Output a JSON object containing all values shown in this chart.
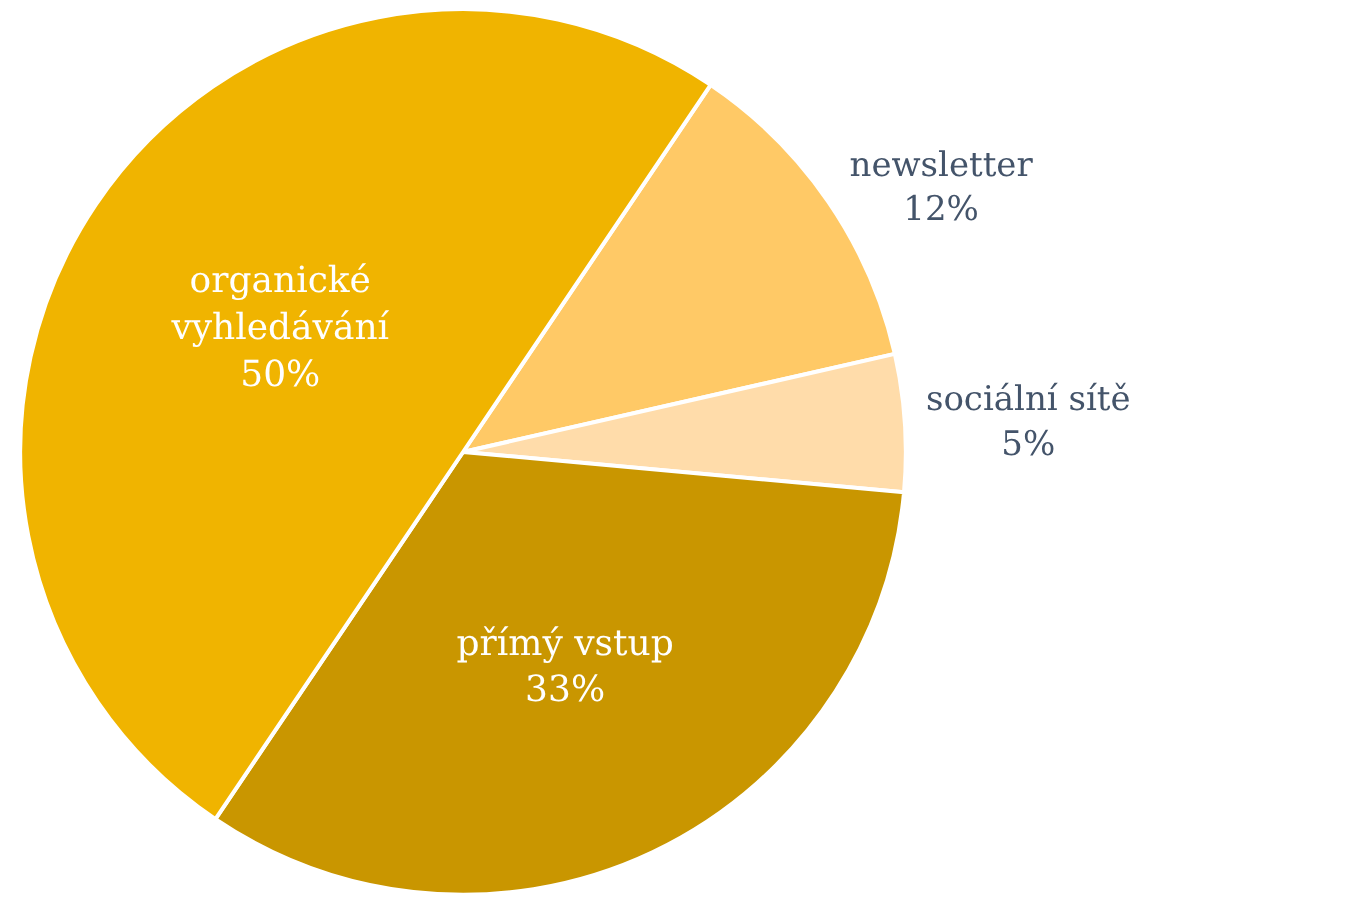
{
  "chart_data": {
    "type": "pie",
    "categories": [
      "newsletter",
      "sociální sítě",
      "přímý vstup",
      "organické vyhledávání"
    ],
    "values": [
      12,
      5,
      33,
      50
    ],
    "value_labels": [
      "12%",
      "5%",
      "33%",
      "50%"
    ],
    "colors": [
      "#ffc966",
      "#ffdcaa",
      "#c99600",
      "#f0b400"
    ],
    "legend": false
  }
}
